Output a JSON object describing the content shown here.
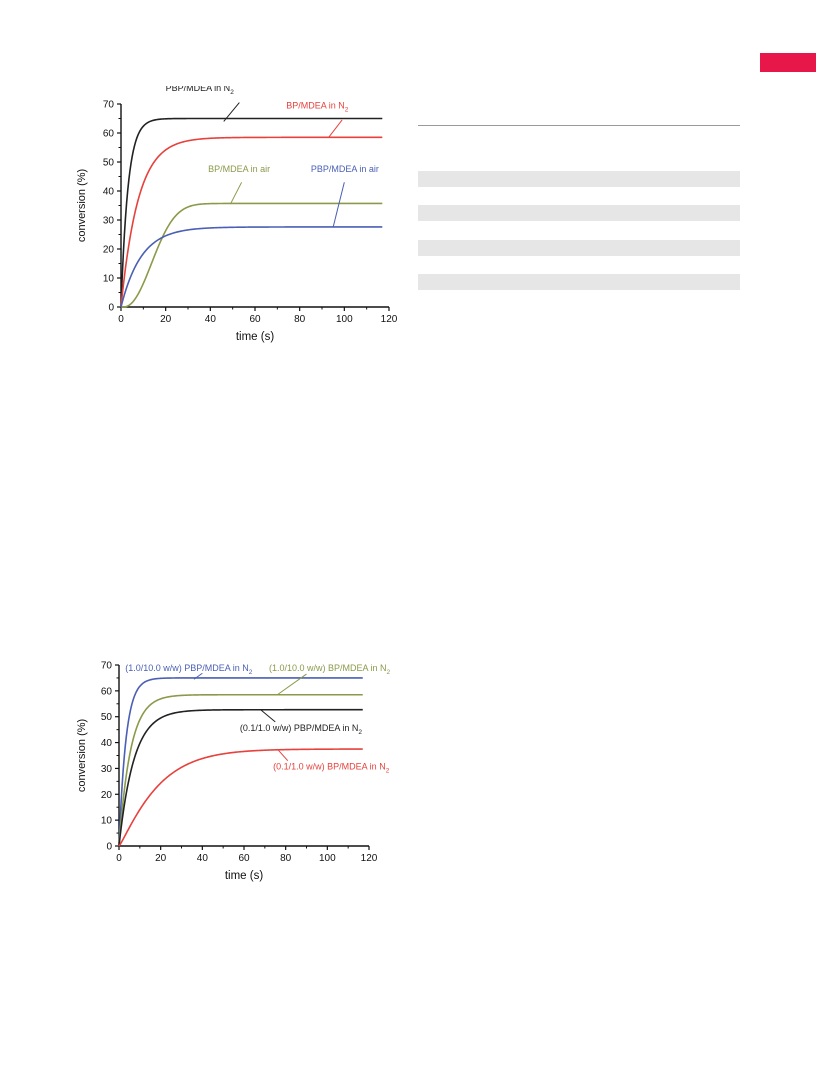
{
  "accent_color": "#e8174a",
  "table_band_color": "#e6e6e6",
  "table_bands": 4,
  "chart_data": [
    {
      "type": "line",
      "xlabel": "time (s)",
      "ylabel": "conversion (%)",
      "xlim": [
        0,
        120
      ],
      "ylim": [
        0,
        70
      ],
      "xticks": [
        0,
        20,
        40,
        60,
        80,
        100,
        120
      ],
      "yticks": [
        0,
        10,
        20,
        30,
        40,
        50,
        60,
        70
      ],
      "series": [
        {
          "name": "PBP/MDEA in N",
          "sub": "2",
          "color": "#222222",
          "k": 0.32,
          "delay": 0,
          "shape": 1,
          "xmax": 117,
          "x": [
            0,
            2,
            5,
            10,
            20,
            40,
            60,
            80,
            100,
            117
          ],
          "values": [
            0,
            30,
            52,
            60,
            63,
            64,
            64.6,
            65,
            65,
            65
          ]
        },
        {
          "name": "BP/MDEA in N",
          "sub": "2",
          "color": "#e8413c",
          "k": 0.13,
          "delay": 0,
          "shape": 1,
          "xmax": 117,
          "x": [
            0,
            2,
            5,
            10,
            20,
            40,
            60,
            80,
            100,
            117
          ],
          "values": [
            0,
            14,
            28,
            43,
            54,
            58,
            58.5,
            58.5,
            58.5,
            58.5
          ]
        },
        {
          "name": "BP/MDEA in air",
          "color": "#8a9a4a",
          "k": 0.06,
          "delay": 1,
          "shape": 2.2,
          "xmax": 117,
          "x": [
            0,
            5,
            10,
            20,
            40,
            60,
            80,
            100,
            117
          ],
          "values": [
            0,
            6,
            14,
            24,
            33,
            35,
            35.5,
            35.7,
            35.7
          ]
        },
        {
          "name": "PBP/MDEA in air",
          "color": "#4a5fb5",
          "k": 0.11,
          "delay": 0,
          "shape": 1,
          "xmax": 117,
          "x": [
            0,
            2,
            5,
            10,
            20,
            40,
            60,
            80,
            100,
            117
          ],
          "values": [
            0,
            6,
            12,
            19,
            24,
            27,
            27.5,
            27.6,
            27.6,
            27.6
          ]
        }
      ],
      "annotations": [
        {
          "text": "PBP/MDEA in N",
          "sub": "2",
          "series": 0,
          "tx": 20,
          "ty": 74.5,
          "ax": 46,
          "ay": 64,
          "lx": 53,
          "ly": 70.5
        },
        {
          "text": "BP/MDEA in N",
          "sub": "2",
          "series": 1,
          "tx": 74,
          "ty": 68.5,
          "ax": 93,
          "ay": 58.5,
          "lx": 99,
          "ly": 64.5
        },
        {
          "text": "BP/MDEA in air",
          "series": 2,
          "tx": 39,
          "ty": 46.5,
          "ax": 49,
          "ay": 35.5,
          "lx": 54,
          "ly": 43
        },
        {
          "text": "PBP/MDEA in air",
          "series": 3,
          "tx": 85,
          "ty": 46.5,
          "ax": 95,
          "ay": 27.6,
          "lx": 100,
          "ly": 43
        }
      ]
    },
    {
      "type": "line",
      "xlabel": "time (s)",
      "ylabel": "conversion (%)",
      "xlim": [
        0,
        120
      ],
      "ylim": [
        0,
        70
      ],
      "xticks": [
        0,
        20,
        40,
        60,
        80,
        100,
        120
      ],
      "yticks": [
        0,
        10,
        20,
        30,
        40,
        50,
        60,
        70
      ],
      "series": [
        {
          "name": "(1.0/10.0 w/w) PBP/MDEA in N",
          "sub": "2",
          "color": "#4a5fb5",
          "k": 0.3,
          "delay": 0,
          "shape": 1,
          "xmax": 117,
          "x": [
            0,
            2,
            5,
            10,
            20,
            40,
            60,
            80,
            100,
            117
          ],
          "values": [
            0,
            29,
            50,
            60,
            63.5,
            64.6,
            65,
            65,
            65,
            65
          ]
        },
        {
          "name": "(1.0/10.0 w/w) BP/MDEA in N",
          "sub": "2",
          "color": "#8a9a4a",
          "k": 0.18,
          "delay": 0,
          "shape": 1,
          "xmax": 117,
          "x": [
            0,
            2,
            5,
            10,
            20,
            40,
            60,
            80,
            100,
            117
          ],
          "values": [
            0,
            17,
            34,
            48,
            56,
            58,
            58.3,
            58.5,
            58.5,
            58.5
          ]
        },
        {
          "name": "(0.1/1.0 w/w) PBP/MDEA in N",
          "sub": "2",
          "color": "#222222",
          "k": 0.14,
          "delay": 0,
          "shape": 1,
          "xmax": 117,
          "x": [
            0,
            2,
            5,
            10,
            20,
            40,
            60,
            80,
            100,
            117
          ],
          "values": [
            0,
            13,
            27,
            40,
            49,
            52,
            52.5,
            52.7,
            52.7,
            52.7
          ]
        },
        {
          "name": "(0.1/1.0 w/w) BP/MDEA in N",
          "sub": "2",
          "color": "#e8413c",
          "k": 0.052,
          "delay": 0,
          "shape": 1.15,
          "xmax": 117,
          "x": [
            0,
            5,
            10,
            20,
            40,
            60,
            80,
            100,
            117
          ],
          "values": [
            0,
            8,
            14,
            23,
            33,
            36.5,
            37.3,
            37.5,
            37.5
          ]
        }
      ],
      "annotations": [
        {
          "text": "(1.0/10.0 w/w) PBP/MDEA in N",
          "sub": "2",
          "series": 0,
          "tx": 3,
          "ty": 67.7,
          "ax": 36,
          "ay": 64.5,
          "lx": 40,
          "ly": 66.8
        },
        {
          "text": "(1.0/10.0 w/w) BP/MDEA in N",
          "sub": "2",
          "series": 1,
          "tx": 72,
          "ty": 67.7,
          "ax": 76,
          "ay": 58.5,
          "lx": 90,
          "ly": 66.5
        },
        {
          "text": "(0.1/1.0 w/w) PBP/MDEA in N",
          "sub": "2",
          "series": 2,
          "tx": 58,
          "ty": 44.5,
          "ax": 68,
          "ay": 52.7,
          "lx": 75,
          "ly": 48
        },
        {
          "text": "(0.1/1.0 w/w) BP/MDEA in N",
          "sub": "2",
          "series": 3,
          "tx": 74,
          "ty": 29.5,
          "ax": 76,
          "ay": 37.5,
          "lx": 81,
          "ly": 33
        }
      ]
    }
  ]
}
